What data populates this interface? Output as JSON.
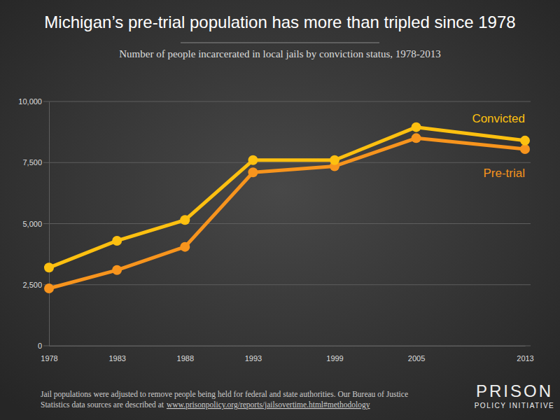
{
  "chart_data": {
    "type": "line",
    "title": "Michigan’s pre-trial population has more than tripled since 1978",
    "subtitle": "Number of people incarcerated in local jails by conviction status, 1978-2013",
    "x": [
      1978,
      1983,
      1988,
      1993,
      1999,
      2005,
      2013
    ],
    "xlim": [
      1978,
      2013
    ],
    "xticks": [
      1978,
      1983,
      1988,
      1993,
      1999,
      2005,
      2013
    ],
    "ylim": [
      0,
      10000
    ],
    "yticks": [
      0,
      {
        "value": 2500,
        "label": "2,500"
      },
      {
        "value": 5000,
        "label": "5,000"
      },
      {
        "value": 7500,
        "label": "7,500"
      },
      {
        "value": 10000,
        "label": "10,000"
      }
    ],
    "grid": true,
    "marker": "circle",
    "series": [
      {
        "name": "Convicted",
        "color": "#fdc010",
        "values": [
          3200,
          4300,
          5150,
          7600,
          7600,
          8950,
          8400
        ]
      },
      {
        "name": "Pre-trial",
        "color": "#f7941d",
        "values": [
          2350,
          3100,
          4050,
          7100,
          7350,
          8500,
          8050
        ]
      }
    ],
    "annotations": [
      "Jail populations were adjusted to remove people being held for federal and state authorities. Our Bureau of Justice",
      "Statistics data sources are described at",
      "www.prisonpolicy.org/reports/jailsovertime.html#methodology",
      "PRISON",
      "POLICY INITIATIVE"
    ]
  }
}
